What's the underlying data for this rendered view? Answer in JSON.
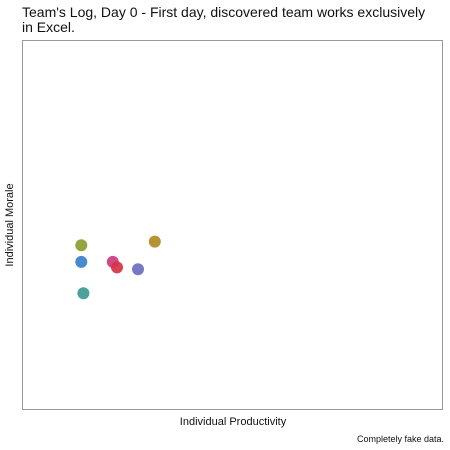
{
  "chart_data": {
    "type": "scatter",
    "title": "Team's Log, Day 0 - First day, discovered team works exclusively in Excel.",
    "xlabel": "Individual Productivity",
    "ylabel": "Individual Morale",
    "xlim": [
      0,
      100
    ],
    "ylim": [
      0,
      100
    ],
    "grid": false,
    "axes_ticks": false,
    "points": [
      {
        "x": 14,
        "y": 44.5,
        "color": "#8c9c2e"
      },
      {
        "x": 14,
        "y": 40.0,
        "color": "#3a7fcc"
      },
      {
        "x": 14.5,
        "y": 31.5,
        "color": "#3c9a8f"
      },
      {
        "x": 21.5,
        "y": 40.0,
        "color": "#cc3a7d"
      },
      {
        "x": 22.5,
        "y": 38.5,
        "color": "#d63445"
      },
      {
        "x": 27.5,
        "y": 38.0,
        "color": "#6e6cc0"
      },
      {
        "x": 31.5,
        "y": 45.5,
        "color": "#b08a22"
      }
    ]
  },
  "footnote": "Completely fake data."
}
